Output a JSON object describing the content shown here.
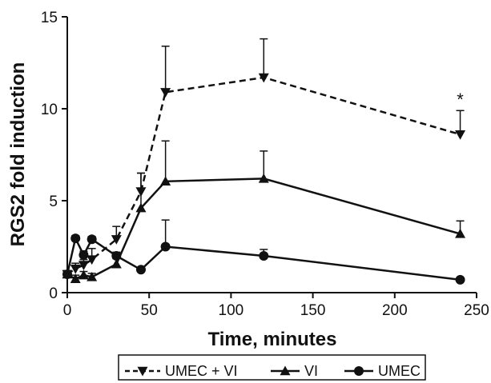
{
  "chart_data": {
    "type": "line",
    "xlabel": "Time, minutes",
    "ylabel": "RGS2 fold induction",
    "xlim": [
      0,
      250
    ],
    "ylim": [
      0,
      15
    ],
    "xticks": [
      "0",
      "50",
      "100",
      "150",
      "200",
      "250"
    ],
    "yticks": [
      "0",
      "5",
      "10",
      "15"
    ],
    "grid": false,
    "legend_position": "bottom",
    "series": [
      {
        "name": "UMEC + VI",
        "marker": "triangle-down",
        "line": "dashed",
        "x": [
          0,
          5,
          10,
          15,
          30,
          45,
          60,
          120,
          240
        ],
        "y": [
          1.0,
          1.3,
          1.5,
          1.8,
          2.9,
          5.5,
          10.9,
          11.7,
          8.6
        ],
        "err": [
          0.2,
          0.3,
          0.3,
          0.6,
          0.7,
          1.0,
          2.5,
          2.1,
          1.3
        ]
      },
      {
        "name": "VI",
        "marker": "triangle-up",
        "line": "solid",
        "x": [
          0,
          5,
          10,
          15,
          30,
          45,
          60,
          120,
          240
        ],
        "y": [
          1.0,
          0.75,
          0.95,
          0.85,
          1.55,
          4.6,
          6.05,
          6.2,
          3.2
        ],
        "err": [
          0.15,
          0.2,
          0.2,
          0.2,
          0.3,
          1.9,
          2.2,
          1.5,
          0.7
        ]
      },
      {
        "name": "UMEC",
        "marker": "circle",
        "line": "solid",
        "x": [
          0,
          5,
          10,
          15,
          30,
          45,
          60,
          120,
          240
        ],
        "y": [
          1.0,
          2.95,
          2.05,
          2.9,
          2.0,
          1.25,
          2.5,
          2.0,
          0.7
        ],
        "err": [
          0.1,
          0.15,
          0.2,
          0.15,
          0.2,
          0.1,
          1.45,
          0.35,
          0.1
        ]
      }
    ],
    "annotations": [
      {
        "text": "*",
        "x": 240,
        "y": 10.0
      }
    ],
    "colors": {
      "line": "#111111",
      "background": "#ffffff"
    }
  }
}
